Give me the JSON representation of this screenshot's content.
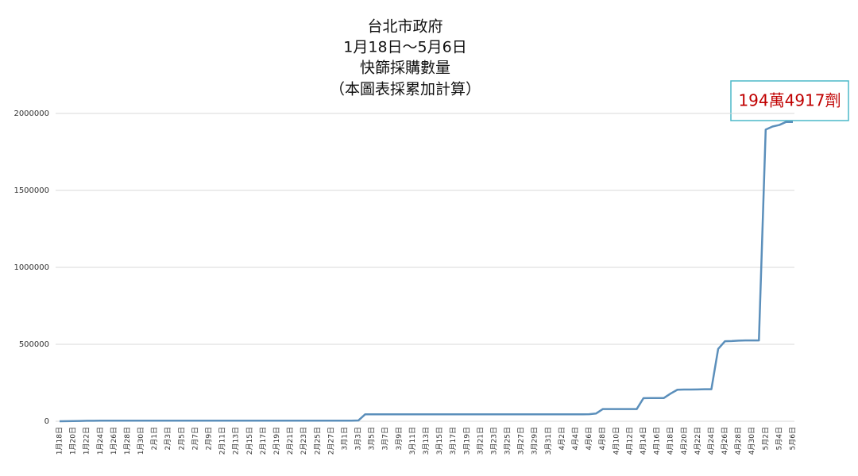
{
  "chart_data": {
    "type": "line",
    "title": [
      "台北市政府",
      "1月18日～5月6日",
      "快篩採購數量",
      "（本圖表採累加計算）"
    ],
    "annotation": "194萬4917劑",
    "color": "#5b8fbb",
    "grid": true,
    "ylim": [
      0,
      2000000
    ],
    "yticks": [
      0,
      500000,
      1000000,
      1500000,
      2000000
    ],
    "categories": [
      "1月18日",
      null,
      "1月20日",
      null,
      "1月22日",
      null,
      "1月24日",
      null,
      "1月26日",
      null,
      "1月28日",
      null,
      "1月30日",
      null,
      "2月1日",
      null,
      "2月3日",
      null,
      "2月5日",
      null,
      "2月7日",
      null,
      "2月9日",
      null,
      "2月11日",
      null,
      "2月13日",
      null,
      "2月15日",
      null,
      "2月17日",
      null,
      "2月19日",
      null,
      "2月21日",
      null,
      "2月23日",
      null,
      "2月25日",
      null,
      "2月27日",
      null,
      "3月1日",
      null,
      "3月3日",
      null,
      "3月5日",
      null,
      "3月7日",
      null,
      "3月9日",
      null,
      "3月11日",
      null,
      "3月13日",
      null,
      "3月15日",
      null,
      "3月17日",
      null,
      "3月19日",
      null,
      "3月21日",
      null,
      "3月23日",
      null,
      "3月25日",
      null,
      "3月27日",
      null,
      "3月29日",
      null,
      "3月31日",
      null,
      "4月2日",
      null,
      "4月4日",
      null,
      "4月6日",
      null,
      "4月8日",
      null,
      "4月10日",
      null,
      "4月12日",
      null,
      "4月14日",
      null,
      "4月16日",
      null,
      "4月18日",
      null,
      "4月20日",
      null,
      "4月22日",
      null,
      "4月24日",
      null,
      "4月26日",
      null,
      "4月28日",
      null,
      "4月30日",
      null,
      "5月2日",
      null,
      "5月4日",
      null,
      "5月6日"
    ],
    "values": [
      0,
      500,
      1000,
      2000,
      3000,
      3500,
      4000,
      4000,
      4000,
      4000,
      4000,
      4000,
      4000,
      4000,
      4000,
      4000,
      4000,
      4000,
      4000,
      4000,
      4000,
      4000,
      4000,
      4000,
      4000,
      4000,
      4000,
      4000,
      4000,
      4000,
      4000,
      4000,
      4000,
      4000,
      4000,
      4000,
      4000,
      4000,
      4000,
      4000,
      4000,
      4000,
      4000,
      4000,
      5000,
      45000,
      45000,
      45000,
      45000,
      45000,
      45000,
      45000,
      45000,
      45000,
      45000,
      45000,
      45000,
      45000,
      45000,
      45000,
      45000,
      45000,
      45000,
      45000,
      45000,
      45000,
      45000,
      45000,
      45000,
      45000,
      45000,
      45000,
      45000,
      45000,
      45000,
      45000,
      45000,
      45000,
      46000,
      50000,
      79000,
      79000,
      79000,
      79000,
      79000,
      79000,
      150000,
      151000,
      151000,
      151000,
      180000,
      205000,
      206000,
      206000,
      207000,
      208000,
      208000,
      470000,
      520000,
      521000,
      524000,
      525000,
      525000,
      525000,
      1895000,
      1915000,
      1925000,
      1944917,
      1944917
    ]
  }
}
